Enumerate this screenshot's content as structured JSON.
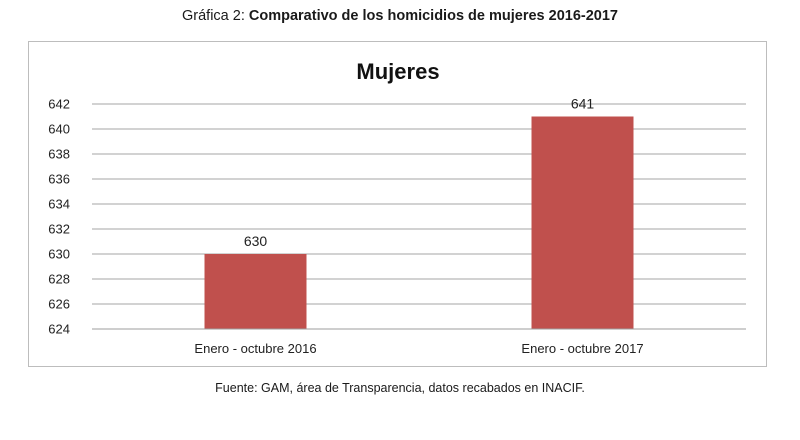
{
  "caption": {
    "prefix": "Gráfica 2: ",
    "main": "Comparativo de los homicidios de mujeres 2016-2017"
  },
  "source": "Fuente: GAM, área de Transparencia, datos recabados en INACIF.",
  "chart_data": {
    "type": "bar",
    "title": "Mujeres",
    "categories": [
      "Enero - octubre  2016",
      "Enero - octubre 2017"
    ],
    "values": [
      630,
      641
    ],
    "data_labels": [
      "630",
      "641"
    ],
    "ylim": [
      624,
      642
    ],
    "yticks": [
      624,
      626,
      628,
      630,
      632,
      634,
      636,
      638,
      640,
      642
    ],
    "grid": true,
    "legend": "none",
    "bar_color": "#c0504d"
  }
}
